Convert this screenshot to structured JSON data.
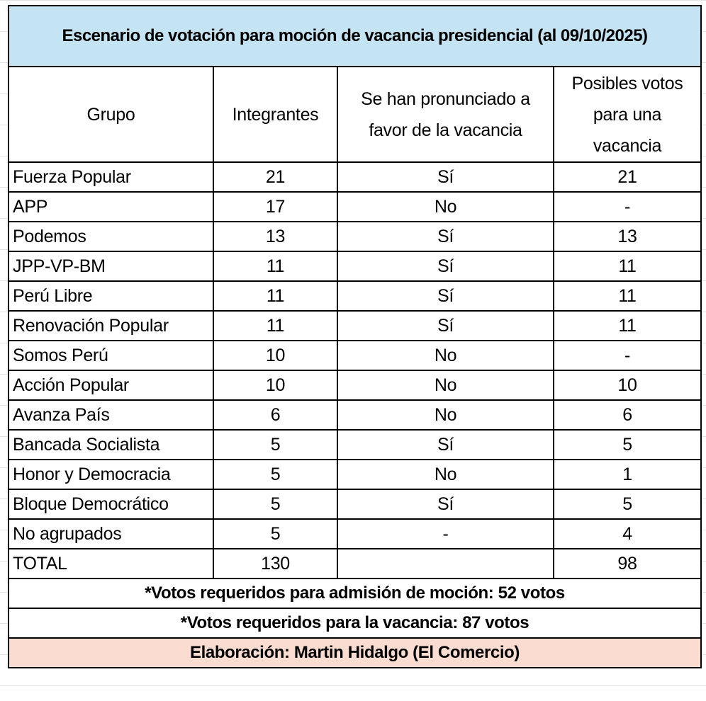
{
  "title": "Escenario de votación para moción de vacancia presidencial (al 09/10/2025)",
  "headers": [
    "Grupo",
    "Integrantes",
    "Se han pronunciado a favor de la vacancia",
    "Posibles votos para una vacancia"
  ],
  "rows": [
    [
      "Fuerza Popular",
      "21",
      "Sí",
      "21"
    ],
    [
      "APP",
      "17",
      "No",
      "-"
    ],
    [
      "Podemos",
      "13",
      "Sí",
      "13"
    ],
    [
      "JPP-VP-BM",
      "11",
      "Sí",
      "11"
    ],
    [
      "Perú Libre",
      "11",
      "Sí",
      "11"
    ],
    [
      "Renovación Popular",
      "11",
      "Sí",
      "11"
    ],
    [
      "Somos Perú",
      "10",
      "No",
      "-"
    ],
    [
      "Acción Popular",
      "10",
      "No",
      "10"
    ],
    [
      "Avanza País",
      "6",
      "No",
      "6"
    ],
    [
      "Bancada Socialista",
      "5",
      "Sí",
      "5"
    ],
    [
      "Honor y Democracia",
      "5",
      "No",
      "1"
    ],
    [
      "Bloque Democrático",
      "5",
      "Sí",
      "5"
    ],
    [
      "No agrupados",
      "5",
      "-",
      "4"
    ]
  ],
  "total": [
    "TOTAL",
    "130",
    "",
    "98"
  ],
  "notes": [
    "*Votos requeridos para admisión de moción: 52 votos",
    "*Votos requeridos para la vacancia: 87 votos"
  ],
  "credit": "Elaboración: Martin Hidalgo (El Comercio)",
  "colors": {
    "title_bg": "#c4e3f3",
    "credit_bg": "#fadcd0"
  }
}
